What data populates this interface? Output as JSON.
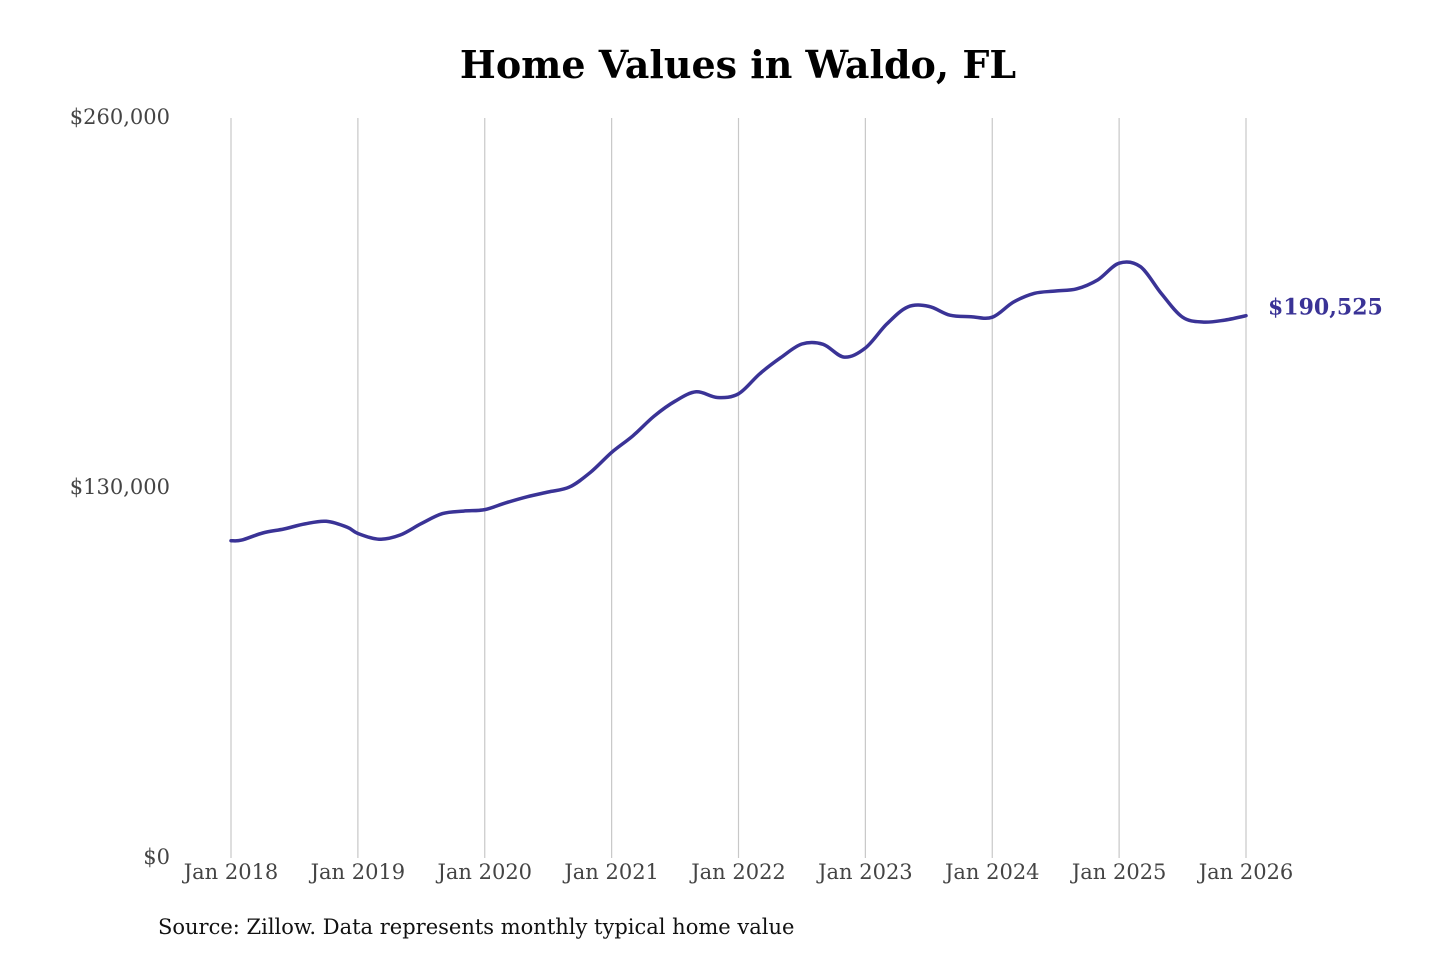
{
  "chart_data": {
    "type": "line",
    "title": "Home Values in Waldo, FL",
    "source": "Source: Zillow. Data represents monthly typical home value",
    "ylim": [
      0,
      260000
    ],
    "y_ticks": [
      {
        "value": 0,
        "label": "$0"
      },
      {
        "value": 130000,
        "label": "$130,000"
      },
      {
        "value": 260000,
        "label": "$260,000"
      }
    ],
    "x_ticks": [
      {
        "year": 2018,
        "label": "Jan 2018"
      },
      {
        "year": 2019,
        "label": "Jan 2019"
      },
      {
        "year": 2020,
        "label": "Jan 2020"
      },
      {
        "year": 2021,
        "label": "Jan 2021"
      },
      {
        "year": 2022,
        "label": "Jan 2022"
      },
      {
        "year": 2023,
        "label": "Jan 2023"
      },
      {
        "year": 2024,
        "label": "Jan 2024"
      },
      {
        "year": 2025,
        "label": "Jan 2025"
      },
      {
        "year": 2026,
        "label": "Jan 2026"
      }
    ],
    "grid": "vertical",
    "line_color": "#3a3396",
    "end_label": "$190,525",
    "series": [
      {
        "x": [
          "2018-01",
          "2018-02",
          "2018-04",
          "2018-06",
          "2018-08",
          "2018-10",
          "2018-12",
          "2019-01",
          "2019-03",
          "2019-05",
          "2019-07",
          "2019-09",
          "2019-11",
          "2020-01",
          "2020-03",
          "2020-05",
          "2020-07",
          "2020-09",
          "2020-11",
          "2021-01",
          "2021-03",
          "2021-05",
          "2021-07",
          "2021-09",
          "2021-11",
          "2022-01",
          "2022-03",
          "2022-05",
          "2022-07",
          "2022-09",
          "2022-11",
          "2023-01",
          "2023-03",
          "2023-05",
          "2023-07",
          "2023-09",
          "2023-11",
          "2024-01",
          "2024-03",
          "2024-05",
          "2024-07",
          "2024-09",
          "2024-11",
          "2025-01",
          "2025-03",
          "2025-05",
          "2025-07",
          "2025-09",
          "2025-11",
          "2026-01"
        ],
        "values": [
          111500,
          111700,
          114200,
          115600,
          117400,
          118300,
          116200,
          114000,
          112000,
          113500,
          117500,
          121000,
          121900,
          122400,
          124800,
          126900,
          128600,
          130300,
          135500,
          142500,
          148300,
          155200,
          160500,
          163800,
          161800,
          163100,
          170100,
          175800,
          180600,
          180500,
          176000,
          179200,
          187500,
          193600,
          193800,
          190700,
          190200,
          190000,
          195300,
          198400,
          199200,
          200000,
          203200,
          209000,
          207800,
          198300,
          190000,
          188300,
          189000,
          190525
        ]
      }
    ]
  }
}
